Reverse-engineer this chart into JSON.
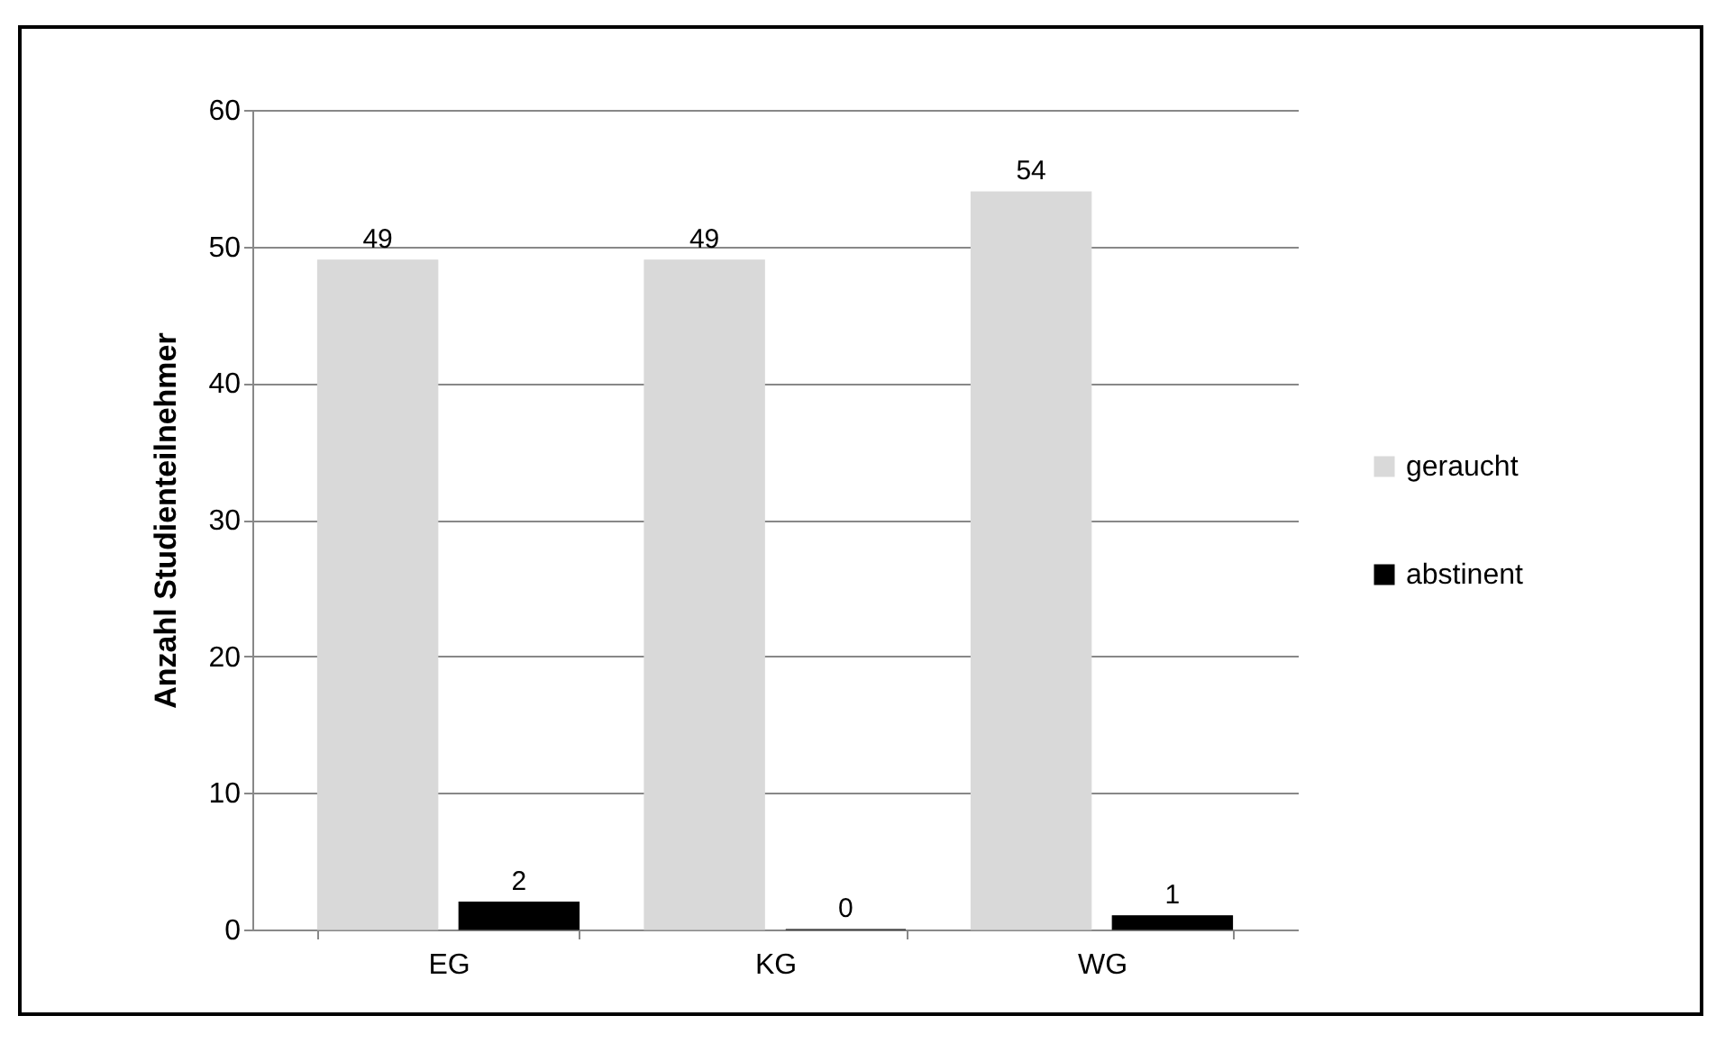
{
  "chart_data": {
    "type": "bar",
    "ylabel": "Anzahl Studienteilnehmer",
    "categories": [
      "EG",
      "KG",
      "WG"
    ],
    "series": [
      {
        "name": "geraucht",
        "color": "#d9d9d9",
        "values": [
          49,
          49,
          54
        ]
      },
      {
        "name": "abstinent",
        "color": "#000000",
        "values": [
          2,
          0,
          1
        ]
      }
    ],
    "ylim": [
      0,
      60
    ],
    "yticks": [
      0,
      10,
      20,
      30,
      40,
      50,
      60
    ],
    "grid": "y",
    "legend": "right",
    "data_labels": true
  }
}
